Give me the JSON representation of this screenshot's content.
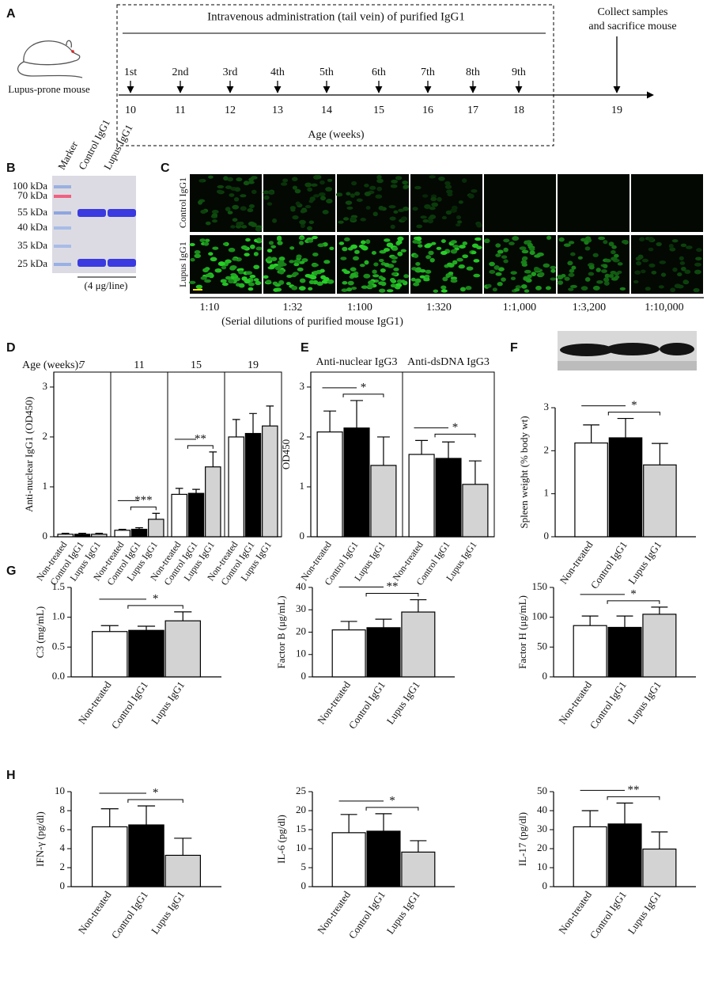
{
  "panel_labels": [
    "A",
    "B",
    "C",
    "D",
    "E",
    "F",
    "G",
    "H"
  ],
  "timeline": {
    "title": "Intravenous administration (tail vein) of purified IgG1",
    "mouse_label": "Lupus-prone mouse",
    "doses": [
      "1st",
      "2nd",
      "3rd",
      "4th",
      "5th",
      "6th",
      "7th",
      "8th",
      "9th"
    ],
    "weeks": [
      "10",
      "11",
      "12",
      "13",
      "14",
      "15",
      "16",
      "17",
      "18",
      "19"
    ],
    "collect": [
      "Collect samples",
      "and sacrifice mouse"
    ],
    "axis_label": "Age (weeks)"
  },
  "gel": {
    "lanes": [
      "Marker",
      "Control IgG1",
      "Lupus IgG1"
    ],
    "markers": [
      "100 kDa",
      "70 kDa",
      "55 kDa",
      "40 kDa",
      "35 kDa",
      "25 kDa"
    ],
    "note": "(4 μg/line)"
  },
  "immunofluorescence": {
    "rows": [
      "Control IgG1",
      "Lupus IgG1"
    ],
    "dilutions": [
      "1:10",
      "1:32",
      "1:100",
      "1:320",
      "1:1,000",
      "1:3,200",
      "1:10,000"
    ],
    "caption": "(Serial dilutions of purified mouse IgG1)"
  },
  "chart_data": [
    {
      "type": "bar",
      "ylabel": "Anti-nuclear IgG1 (OD450)",
      "group_title": "Age (weeks):",
      "categories": [
        "Non-treated",
        "Control IgG1",
        "Lupus IgG1"
      ],
      "colors": [
        "#ffffff",
        "#000000",
        "#d3d3d3"
      ],
      "groups": [
        {
          "name": "7",
          "values": [
            0.05,
            0.05,
            0.05
          ],
          "errors": [
            0.02,
            0.02,
            0.02
          ]
        },
        {
          "name": "11",
          "values": [
            0.13,
            0.15,
            0.35
          ],
          "errors": [
            0.02,
            0.03,
            0.12
          ],
          "annotation": "***"
        },
        {
          "name": "15",
          "values": [
            0.85,
            0.87,
            1.4
          ],
          "errors": [
            0.12,
            0.08,
            0.3
          ],
          "annotation": "**"
        },
        {
          "name": "19",
          "values": [
            2.0,
            2.07,
            2.22
          ],
          "errors": [
            0.35,
            0.4,
            0.4
          ]
        }
      ],
      "ylim": [
        0,
        3.3
      ],
      "yticks": [
        0,
        1,
        2,
        3
      ]
    },
    {
      "type": "bar",
      "ylabel": "OD450",
      "categories": [
        "Non-treated",
        "Control IgG1",
        "Lupus IgG1"
      ],
      "colors": [
        "#ffffff",
        "#000000",
        "#d3d3d3"
      ],
      "groups": [
        {
          "name": "Anti-nuclear IgG3",
          "values": [
            2.1,
            2.18,
            1.43
          ],
          "errors": [
            0.42,
            0.55,
            0.57
          ],
          "annotation": "*"
        },
        {
          "name": "Anti-dsDNA IgG3",
          "values": [
            1.65,
            1.57,
            1.05
          ],
          "errors": [
            0.28,
            0.33,
            0.47
          ],
          "annotation": "*"
        }
      ],
      "ylim": [
        0,
        3.3
      ],
      "yticks": [
        0,
        1,
        2,
        3
      ]
    },
    {
      "type": "bar",
      "ylabel": "Spleen weight (% body wt)",
      "categories": [
        "Non-treated",
        "Control IgG1",
        "Lupus IgG1"
      ],
      "colors": [
        "#ffffff",
        "#000000",
        "#d3d3d3"
      ],
      "values": [
        2.18,
        2.3,
        1.67
      ],
      "errors": [
        0.42,
        0.45,
        0.5
      ],
      "annotation": "*",
      "ylim": [
        0,
        3
      ],
      "yticks": [
        0,
        1,
        2,
        3
      ]
    },
    {
      "type": "bar",
      "ylabel": "C3 (mg/mL)",
      "categories": [
        "Non-treated",
        "Control IgG1",
        "Lupus IgG1"
      ],
      "colors": [
        "#ffffff",
        "#000000",
        "#d3d3d3"
      ],
      "values": [
        0.76,
        0.78,
        0.94
      ],
      "errors": [
        0.1,
        0.07,
        0.15
      ],
      "annotation": "*",
      "ylim": [
        0,
        1.5
      ],
      "yticks": [
        {
          "value": 0,
          "label": "0.0"
        },
        {
          "value": 0.5,
          "label": "0.5"
        },
        {
          "value": 1,
          "label": "1.0"
        },
        {
          "value": 1.5,
          "label": "1.5"
        }
      ]
    },
    {
      "type": "bar",
      "ylabel": "Factor B (μg/mL)",
      "categories": [
        "Non-treated",
        "Control IgG1",
        "Lupus IgG1"
      ],
      "colors": [
        "#ffffff",
        "#000000",
        "#d3d3d3"
      ],
      "values": [
        21,
        22,
        29
      ],
      "errors": [
        3.8,
        3.8,
        5.5
      ],
      "annotation": "**",
      "ylim": [
        0,
        40
      ],
      "yticks": [
        0,
        10,
        20,
        30,
        40
      ]
    },
    {
      "type": "bar",
      "ylabel": "Factor H (μg/mL)",
      "categories": [
        "Non-treated",
        "Control IgG1",
        "Lupus IgG1"
      ],
      "colors": [
        "#ffffff",
        "#000000",
        "#d3d3d3"
      ],
      "values": [
        86,
        83,
        105
      ],
      "errors": [
        16,
        19,
        12
      ],
      "annotation": "*",
      "ylim": [
        0,
        150
      ],
      "yticks": [
        0,
        50,
        100,
        150
      ]
    },
    {
      "type": "bar",
      "ylabel": "IFN-γ (pg/dl)",
      "categories": [
        "Non-treated",
        "Control IgG1",
        "Lupus IgG1"
      ],
      "colors": [
        "#ffffff",
        "#000000",
        "#d3d3d3"
      ],
      "values": [
        6.3,
        6.5,
        3.3
      ],
      "errors": [
        1.9,
        2.0,
        1.8
      ],
      "annotation": "*",
      "ylim": [
        0,
        10
      ],
      "yticks": [
        0,
        2,
        4,
        6,
        8,
        10
      ]
    },
    {
      "type": "bar",
      "ylabel": "IL-6 (pg/dl)",
      "categories": [
        "Non-treated",
        "Control IgG1",
        "Lupus IgG1"
      ],
      "colors": [
        "#ffffff",
        "#000000",
        "#d3d3d3"
      ],
      "values": [
        14.2,
        14.6,
        9.1
      ],
      "errors": [
        4.8,
        4.6,
        3.0
      ],
      "annotation": "*",
      "ylim": [
        0,
        25
      ],
      "yticks": [
        0,
        5,
        10,
        15,
        20,
        25
      ]
    },
    {
      "type": "bar",
      "ylabel": "IL-17 (pg/dl)",
      "categories": [
        "Non-treated",
        "Control IgG1",
        "Lupus IgG1"
      ],
      "colors": [
        "#ffffff",
        "#000000",
        "#d3d3d3"
      ],
      "values": [
        31.5,
        33,
        19.8
      ],
      "errors": [
        8.5,
        11,
        9
      ],
      "annotation": "**",
      "ylim": [
        0,
        50
      ],
      "yticks": [
        0,
        10,
        20,
        30,
        40,
        50
      ]
    }
  ]
}
